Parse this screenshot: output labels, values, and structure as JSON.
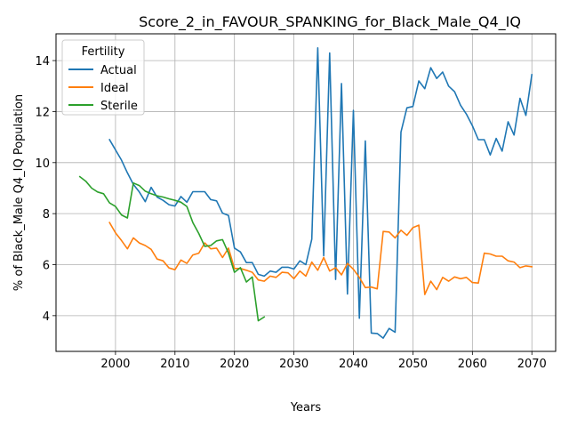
{
  "chart_data": {
    "type": "line",
    "title": "Score_2_in_FAVOUR_SPANKING_for_Black_Male_Q4_IQ",
    "xlabel": "Years",
    "ylabel": "% of Black_Male Q4_IQ Population",
    "xlim": [
      1990,
      2074
    ],
    "ylim": [
      2.6,
      15.05
    ],
    "x_ticks": [
      2000,
      2010,
      2020,
      2030,
      2040,
      2050,
      2060,
      2070
    ],
    "y_ticks": [
      4,
      6,
      8,
      10,
      12,
      14
    ],
    "grid": true,
    "legend": {
      "title": "Fertility",
      "position": "top-left"
    },
    "series": [
      {
        "name": "Actual",
        "color": "#1f77b4",
        "x": [
          1999,
          2000,
          2001,
          2002,
          2003,
          2004,
          2005,
          2006,
          2007,
          2008,
          2009,
          2010,
          2011,
          2012,
          2013,
          2014,
          2015,
          2016,
          2017,
          2018,
          2019,
          2020,
          2021,
          2022,
          2023,
          2024,
          2025,
          2026,
          2027,
          2028,
          2029,
          2030,
          2031,
          2032,
          2033,
          2034,
          2035,
          2036,
          2037,
          2038,
          2039,
          2040,
          2041,
          2042,
          2043,
          2044,
          2045,
          2046,
          2047,
          2048,
          2049,
          2050,
          2051,
          2052,
          2053,
          2054,
          2055,
          2056,
          2057,
          2058,
          2059,
          2060,
          2061,
          2062,
          2063,
          2064,
          2065,
          2066,
          2067,
          2068,
          2069,
          2070
        ],
        "values": [
          10.9,
          10.5,
          10.1,
          9.6,
          9.15,
          8.85,
          8.47,
          9.03,
          8.65,
          8.52,
          8.35,
          8.3,
          8.67,
          8.45,
          8.86,
          8.86,
          8.86,
          8.55,
          8.5,
          8.02,
          7.93,
          6.65,
          6.5,
          6.08,
          6.08,
          5.62,
          5.55,
          5.75,
          5.7,
          5.9,
          5.9,
          5.83,
          6.15,
          6.0,
          7.0,
          14.5,
          6.35,
          14.3,
          5.42,
          13.1,
          4.85,
          12.05,
          3.9,
          10.85,
          3.32,
          3.3,
          3.12,
          3.5,
          3.35,
          11.2,
          12.15,
          12.2,
          13.2,
          12.9,
          13.72,
          13.3,
          13.55,
          13.0,
          12.78,
          12.25,
          11.9,
          11.45,
          10.9,
          10.9,
          10.3,
          10.95,
          10.45,
          11.6,
          11.08,
          12.52,
          11.85,
          13.45
        ]
      },
      {
        "name": "Ideal",
        "color": "#ff7f0e",
        "x": [
          1999,
          2000,
          2001,
          2002,
          2003,
          2004,
          2005,
          2006,
          2007,
          2008,
          2009,
          2010,
          2011,
          2012,
          2013,
          2014,
          2015,
          2016,
          2017,
          2018,
          2019,
          2020,
          2021,
          2022,
          2023,
          2024,
          2025,
          2026,
          2027,
          2028,
          2029,
          2030,
          2031,
          2032,
          2033,
          2034,
          2035,
          2036,
          2037,
          2038,
          2039,
          2040,
          2041,
          2042,
          2043,
          2044,
          2045,
          2046,
          2047,
          2048,
          2049,
          2050,
          2051,
          2052,
          2053,
          2054,
          2055,
          2056,
          2057,
          2058,
          2059,
          2060,
          2061,
          2062,
          2063,
          2064,
          2065,
          2066,
          2067,
          2068,
          2069,
          2070
        ],
        "values": [
          7.65,
          7.25,
          6.95,
          6.62,
          7.05,
          6.85,
          6.75,
          6.6,
          6.22,
          6.15,
          5.87,
          5.8,
          6.18,
          6.05,
          6.38,
          6.45,
          6.85,
          6.62,
          6.65,
          6.28,
          6.65,
          5.85,
          5.85,
          5.78,
          5.7,
          5.4,
          5.35,
          5.55,
          5.5,
          5.7,
          5.68,
          5.45,
          5.75,
          5.55,
          6.1,
          5.78,
          6.28,
          5.75,
          5.88,
          5.6,
          6.05,
          5.82,
          5.5,
          5.1,
          5.12,
          5.05,
          7.3,
          7.28,
          7.05,
          7.35,
          7.15,
          7.45,
          7.55,
          4.83,
          5.35,
          5.02,
          5.5,
          5.35,
          5.52,
          5.45,
          5.5,
          5.3,
          5.28,
          6.45,
          6.42,
          6.33,
          6.33,
          6.15,
          6.1,
          5.88,
          5.95,
          5.92
        ]
      },
      {
        "name": "Sterile",
        "color": "#2ca02c",
        "x": [
          1994,
          1995,
          1996,
          1997,
          1998,
          1999,
          2000,
          2001,
          2002,
          2003,
          2004,
          2005,
          2006,
          2007,
          2008,
          2009,
          2010,
          2011,
          2012,
          2013,
          2014,
          2015,
          2016,
          2017,
          2018,
          2019,
          2020,
          2021,
          2022,
          2023,
          2024,
          2025
        ],
        "values": [
          9.45,
          9.27,
          9.0,
          8.85,
          8.78,
          8.42,
          8.28,
          7.95,
          7.83,
          9.2,
          9.1,
          8.88,
          8.78,
          8.7,
          8.65,
          8.58,
          8.52,
          8.45,
          8.28,
          7.65,
          7.22,
          6.72,
          6.75,
          6.93,
          6.98,
          6.45,
          5.7,
          5.88,
          5.32,
          5.52,
          3.8,
          3.95
        ]
      }
    ]
  }
}
